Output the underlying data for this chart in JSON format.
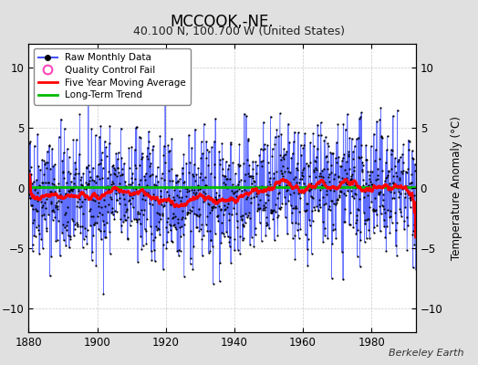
{
  "title": "MCCOOK,-NE.",
  "subtitle": "40.100 N, 100.700 W (United States)",
  "ylabel": "Temperature Anomaly (°C)",
  "credit": "Berkeley Earth",
  "xlim": [
    1880,
    1993
  ],
  "ylim": [
    -12,
    12
  ],
  "yticks": [
    -10,
    -5,
    0,
    5,
    10
  ],
  "xticks": [
    1880,
    1900,
    1920,
    1940,
    1960,
    1980
  ],
  "start_year": 1880,
  "end_year": 1992,
  "months_per_year": 12,
  "background_color": "#e0e0e0",
  "plot_background": "#ffffff",
  "grid_color": "#bbbbbb",
  "raw_line_color": "#4455ff",
  "raw_dot_color": "#000000",
  "moving_avg_color": "#ff0000",
  "trend_color": "#00bb00",
  "trend_y": 0.08,
  "seed": 42,
  "noise_std": 2.6,
  "moving_avg_window": 60,
  "figsize": [
    5.24,
    4.0
  ],
  "dpi": 100
}
